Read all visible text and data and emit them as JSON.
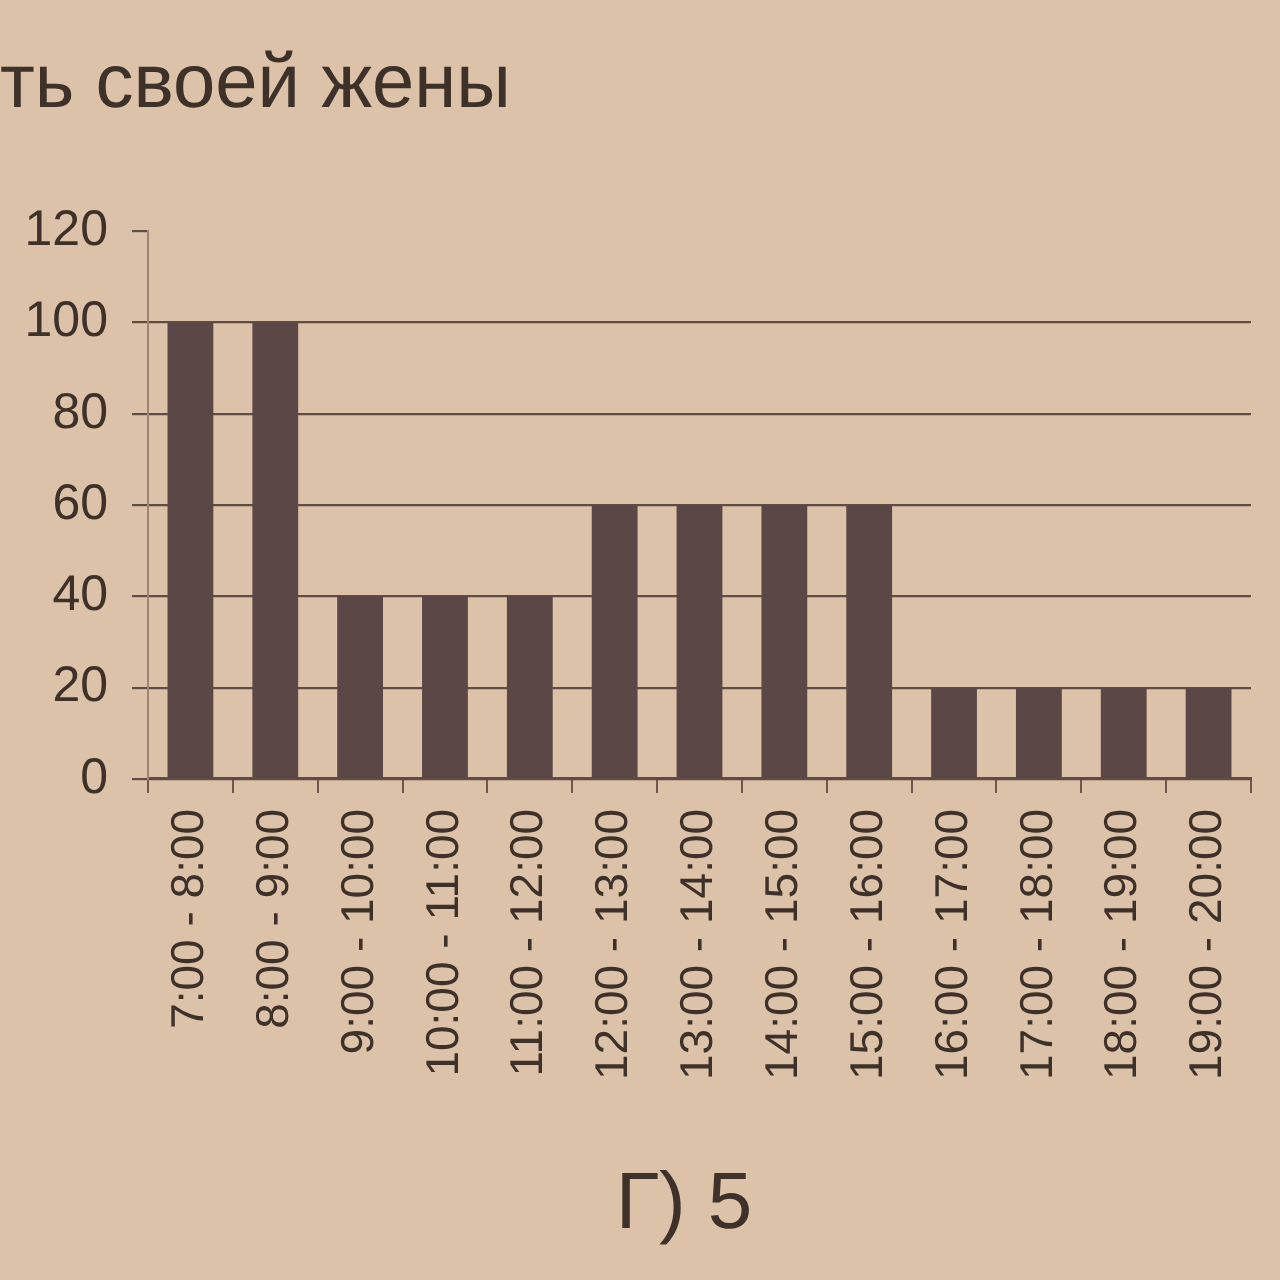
{
  "chart_data": {
    "type": "bar",
    "title": "ть своей жены",
    "categories": [
      "7:00 - 8:00",
      "8:00 - 9:00",
      "9:00 - 10:00",
      "10:00 - 11:00",
      "11:00 - 12:00",
      "12:00 - 13:00",
      "13:00 - 14:00",
      "14:00 - 15:00",
      "15:00 - 16:00",
      "16:00 - 17:00",
      "17:00 - 18:00",
      "18:00 - 19:00",
      "19:00 - 20:00"
    ],
    "values": [
      100,
      100,
      40,
      40,
      40,
      60,
      60,
      60,
      60,
      20,
      20,
      20,
      20
    ],
    "color": "#5b4846",
    "ylim": [
      0,
      120
    ],
    "yticks": [
      0,
      20,
      40,
      60,
      80,
      100,
      120
    ],
    "grid": "y",
    "annotations": [
      "Г) 5"
    ]
  }
}
